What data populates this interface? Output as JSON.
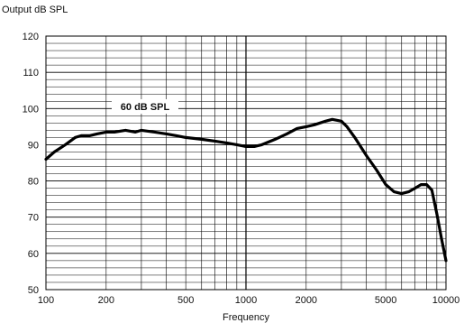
{
  "chart_data": {
    "type": "line",
    "title": "",
    "xlabel": "Frequency",
    "ylabel": "Output dB SPL",
    "xscale": "log",
    "xlim": [
      100,
      10000
    ],
    "ylim": [
      50,
      120
    ],
    "grid": true,
    "legend": "none",
    "x_tick_labels": [
      "100",
      "200",
      "500",
      "1000",
      "2000",
      "5000",
      "10000"
    ],
    "y_tick_labels": [
      "50",
      "60",
      "70",
      "80",
      "90",
      "100",
      "110",
      "120"
    ],
    "annotation": "60 dB SPL",
    "line_color": "#000000",
    "series": [
      {
        "x": [
          100,
          110,
          125,
          140,
          150,
          165,
          180,
          200,
          220,
          250,
          280,
          300,
          350,
          400,
          450,
          500,
          600,
          700,
          800,
          900,
          1000,
          1100,
          1200,
          1400,
          1600,
          1800,
          2000,
          2200,
          2500,
          2700,
          3000,
          3200,
          3500,
          4000,
          4500,
          5000,
          5500,
          6000,
          6500,
          7000,
          7500,
          8000,
          8500,
          9000,
          9500,
          10000
        ],
        "y": [
          86,
          88,
          90,
          92,
          92.5,
          92.5,
          93,
          93.5,
          93.5,
          94,
          93.5,
          94,
          93.5,
          93,
          92.5,
          92,
          91.5,
          91,
          90.5,
          90,
          89.5,
          89.5,
          90,
          91.5,
          93,
          94.5,
          95,
          95.5,
          96.5,
          97,
          96.5,
          95,
          92,
          87,
          83,
          79,
          77,
          76.5,
          77,
          78,
          79,
          79,
          77.5,
          71,
          64,
          58
        ]
      }
    ]
  }
}
